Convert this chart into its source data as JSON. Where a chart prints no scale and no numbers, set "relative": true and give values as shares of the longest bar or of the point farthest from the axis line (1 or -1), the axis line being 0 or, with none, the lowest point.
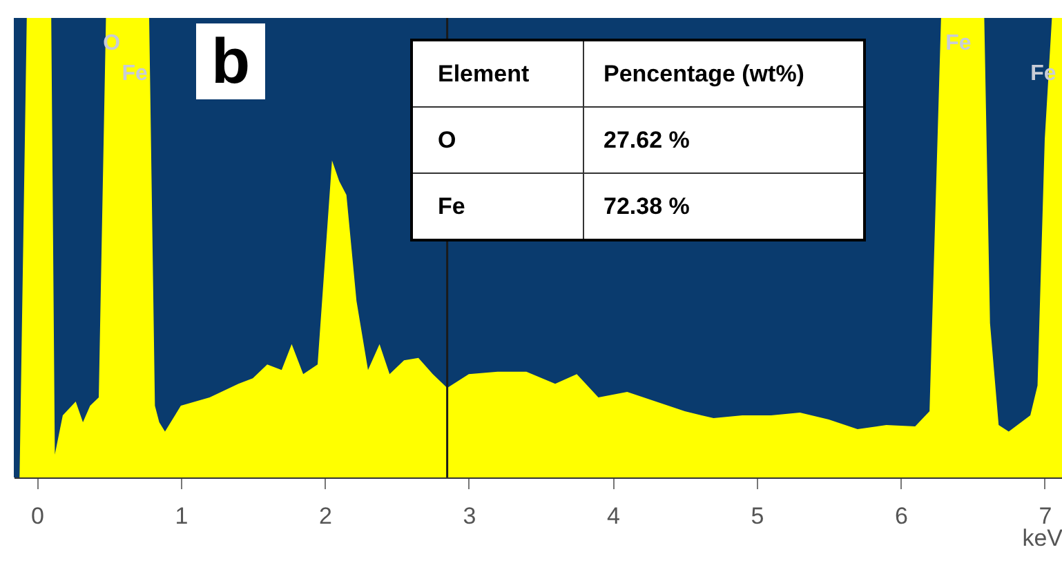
{
  "chart_data": {
    "type": "area",
    "relative": true,
    "xlabel": "keV",
    "xlim": [
      -0.16,
      7.12
    ],
    "xticks": [
      0,
      1,
      2,
      3,
      4,
      5,
      6,
      7
    ],
    "series": [
      {
        "color": "#ffff00",
        "x": [
          -0.12,
          -0.07,
          0.1,
          0.125,
          0.18,
          0.27,
          0.32,
          0.37,
          0.43,
          0.48,
          0.78,
          0.82,
          0.85,
          0.89,
          1.0,
          1.2,
          1.4,
          1.5,
          1.6,
          1.7,
          1.77,
          1.85,
          1.95,
          2.05,
          2.1,
          2.15,
          2.22,
          2.3,
          2.38,
          2.45,
          2.55,
          2.65,
          2.75,
          2.85,
          3.0,
          3.2,
          3.4,
          3.6,
          3.75,
          3.9,
          4.1,
          4.3,
          4.5,
          4.7,
          4.9,
          5.1,
          5.3,
          5.5,
          5.7,
          5.9,
          6.1,
          6.2,
          6.28,
          6.58,
          6.62,
          6.68,
          6.75,
          6.9,
          6.95,
          7.0,
          7.05,
          7.12
        ],
        "values": [
          0,
          1,
          1,
          0.05,
          0.135,
          0.165,
          0.12,
          0.156,
          0.174,
          1,
          1,
          0.156,
          0.12,
          0.1,
          0.156,
          0.174,
          0.204,
          0.216,
          0.246,
          0.234,
          0.29,
          0.225,
          0.246,
          0.69,
          0.645,
          0.615,
          0.384,
          0.234,
          0.29,
          0.225,
          0.255,
          0.26,
          0.225,
          0.195,
          0.225,
          0.23,
          0.23,
          0.204,
          0.225,
          0.174,
          0.186,
          0.165,
          0.144,
          0.129,
          0.135,
          0.135,
          0.141,
          0.126,
          0.105,
          0.114,
          0.111,
          0.144,
          1,
          1,
          0.336,
          0.114,
          0.1,
          0.135,
          0.2,
          0.735,
          1,
          1
        ]
      }
    ],
    "ref_lines": [
      {
        "axis": "x",
        "value": 2.85,
        "color": "#1a1a1a"
      }
    ],
    "annotations": [
      "b",
      "Element",
      "Pencentage (wt%)",
      "O",
      "27.62 %",
      "Fe",
      "72.38 %",
      {
        "text": "O",
        "x": 0.52,
        "y": 1
      },
      {
        "text": "Fe",
        "x": 0.68,
        "y": 1
      },
      {
        "text": "Fe",
        "x": 6.4,
        "y": 1
      },
      {
        "text": "Fe",
        "x": 7.08,
        "y": 1
      }
    ]
  }
}
